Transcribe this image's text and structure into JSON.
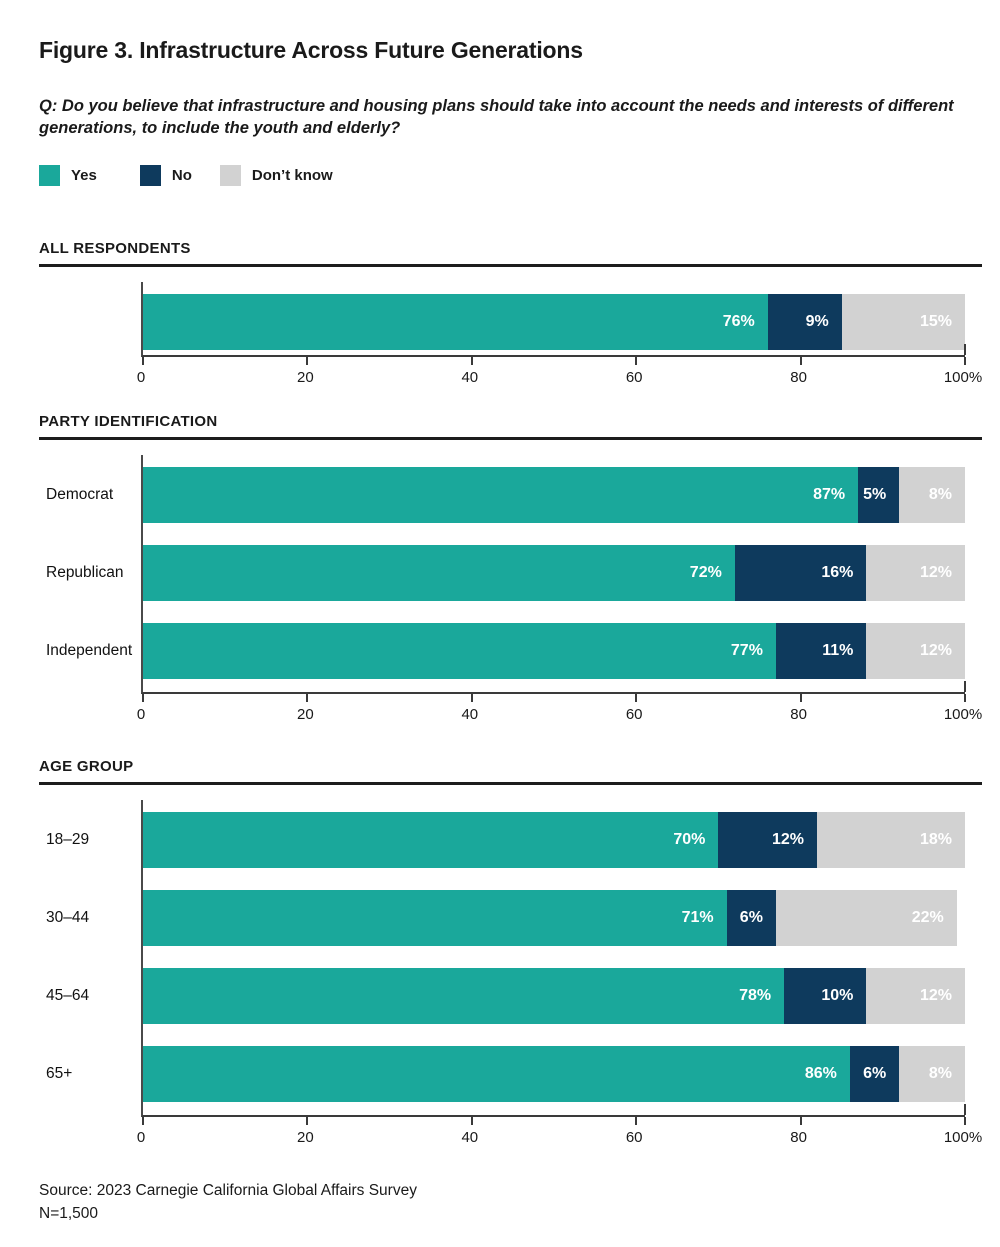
{
  "figure": {
    "title": "Figure 3. Infrastructure Across Future Generations",
    "question_lines": [
      "Q: Do you believe that infrastructure and housing plans should take into account the needs and interests of different",
      "generations, to include the youth and elderly?"
    ]
  },
  "legend": {
    "items": [
      {
        "label": "Yes",
        "color": "#1AA89B"
      },
      {
        "label": "No",
        "color": "#0E3A5D"
      },
      {
        "label": "Don’t know",
        "color": "#D2D2D2"
      }
    ]
  },
  "colors": {
    "accent_teal": "#1AA89B",
    "accent_navy": "#0E3A5D",
    "accent_gray": "#D2D2D2",
    "section_rule": "#1D1D1D",
    "axis": "#3A3A3A",
    "text": "#1A1A1A",
    "value_label": "#FFFFFF"
  },
  "chart_data": [
    {
      "type": "bar",
      "stacked": true,
      "orientation": "horizontal",
      "title": "ALL RESPONDENTS",
      "categories": [
        ""
      ],
      "series": [
        {
          "name": "Yes",
          "values": [
            76
          ]
        },
        {
          "name": "No",
          "values": [
            9
          ]
        },
        {
          "name": "Don’t know",
          "values": [
            15
          ]
        }
      ],
      "xlim": [
        0,
        100
      ],
      "axis_ticks": [
        "0",
        "20",
        "40",
        "60",
        "80",
        "100%"
      ],
      "value_suffix": "%"
    },
    {
      "type": "bar",
      "stacked": true,
      "orientation": "horizontal",
      "title": "PARTY IDENTIFICATION",
      "categories": [
        "Democrat",
        "Republican",
        "Independent"
      ],
      "series": [
        {
          "name": "Yes",
          "values": [
            87,
            72,
            77
          ]
        },
        {
          "name": "No",
          "values": [
            5,
            16,
            11
          ]
        },
        {
          "name": "Don’t know",
          "values": [
            8,
            12,
            12
          ]
        }
      ],
      "xlim": [
        0,
        100
      ],
      "axis_ticks": [
        "0",
        "20",
        "40",
        "60",
        "80",
        "100%"
      ],
      "value_suffix": "%"
    },
    {
      "type": "bar",
      "stacked": true,
      "orientation": "horizontal",
      "title": "AGE GROUP",
      "categories": [
        "18–29",
        "30–44",
        "45–64",
        "65+"
      ],
      "series": [
        {
          "name": "Yes",
          "values": [
            70,
            71,
            78,
            86
          ]
        },
        {
          "name": "No",
          "values": [
            12,
            6,
            10,
            6
          ]
        },
        {
          "name": "Don’t know",
          "values": [
            18,
            22,
            12,
            8
          ]
        }
      ],
      "xlim": [
        0,
        100
      ],
      "axis_ticks": [
        "0",
        "20",
        "40",
        "60",
        "80",
        "100%"
      ],
      "value_suffix": "%"
    }
  ],
  "source": {
    "line1": "Source: 2023 Carnegie California Global Affairs Survey",
    "line2": "N=1,500"
  }
}
